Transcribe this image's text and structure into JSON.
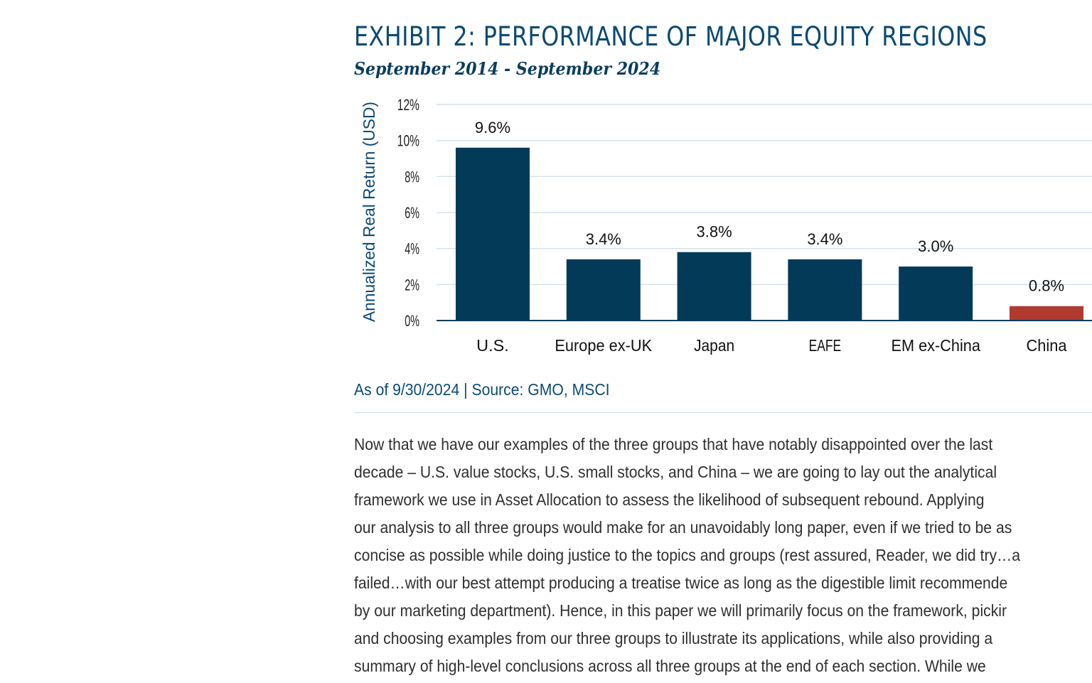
{
  "header": {
    "title": "EXHIBIT 2: PERFORMANCE OF MAJOR EQUITY REGIONS",
    "subtitle": "September 2014 - September 2024"
  },
  "chart_data": {
    "type": "bar",
    "ylabel": "Annualized Real Return (USD)",
    "xlabel": "",
    "ylim": [
      0,
      12
    ],
    "yticks": [
      0,
      2,
      4,
      6,
      8,
      10,
      12
    ],
    "ytick_labels": [
      "0%",
      "2%",
      "4%",
      "6%",
      "8%",
      "10%",
      "12%"
    ],
    "categories": [
      "U.S.",
      "Europe ex-UK",
      "Japan",
      "EAFE",
      "EM ex-China",
      "China"
    ],
    "values": [
      9.6,
      3.4,
      3.8,
      3.4,
      3.0,
      0.8
    ],
    "data_labels": [
      "9.6%",
      "3.4%",
      "3.8%",
      "3.4%",
      "3.0%",
      "0.8%"
    ],
    "colors": [
      "#033a58",
      "#033a58",
      "#033a58",
      "#033a58",
      "#033a58",
      "#b03a2e"
    ],
    "grid": true,
    "legend": "none"
  },
  "source": {
    "text": "As of 9/30/2024 | Source: GMO, MSCI"
  },
  "body": {
    "lines": [
      "Now that we have our examples of the three groups that have notably disappointed over the last",
      "decade – U.S. value stocks, U.S. small stocks, and China – we are going to lay out the analytical",
      "framework we use in Asset Allocation to assess the likelihood of subsequent rebound. Applying",
      "our analysis to all three groups would make for an unavoidably long paper, even if we tried to be as",
      "concise as possible while doing justice to the topics and groups (rest assured, Reader, we did try…a",
      "failed…with our best attempt producing a treatise twice as long as the digestible limit recommende",
      "by our marketing department). Hence, in this paper we will primarily focus on the framework, pickir",
      "and choosing examples from our three groups to illustrate its applications, while also providing a",
      "summary of high-level conclusions across all three groups at the end of each section. While we"
    ]
  }
}
